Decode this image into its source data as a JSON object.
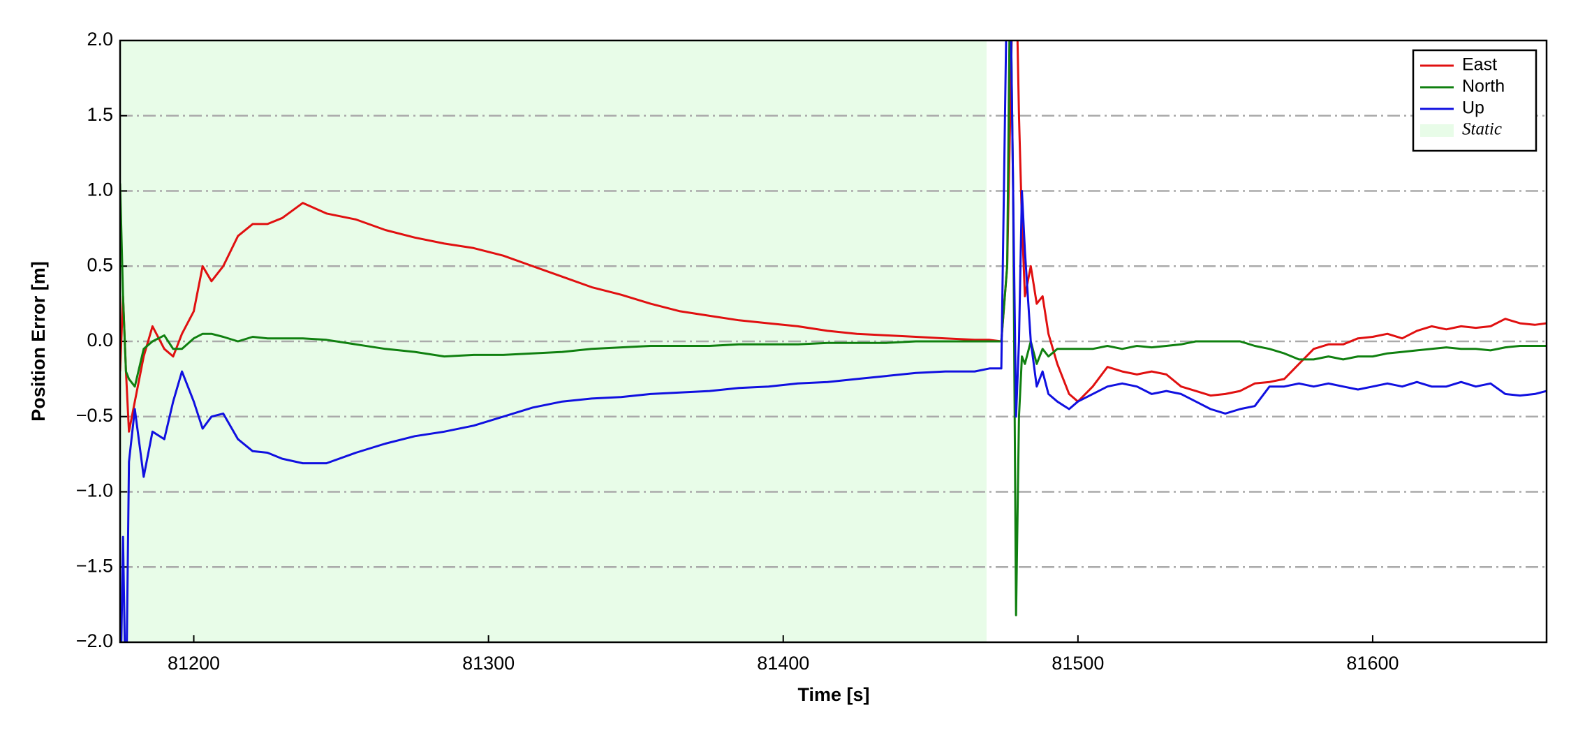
{
  "chart_data": {
    "type": "line",
    "xlabel": "Time [s]",
    "ylabel": "Position Error [m]",
    "x": [
      81175,
      81176,
      81177,
      81178,
      81180,
      81183,
      81186,
      81190,
      81193,
      81196,
      81200,
      81203,
      81206,
      81210,
      81215,
      81220,
      81225,
      81230,
      81237,
      81245,
      81255,
      81265,
      81275,
      81285,
      81295,
      81305,
      81315,
      81325,
      81335,
      81345,
      81355,
      81365,
      81375,
      81385,
      81395,
      81405,
      81415,
      81425,
      81435,
      81445,
      81455,
      81465,
      81470,
      81474,
      81476,
      81477,
      81478,
      81479,
      81480,
      81481,
      81482,
      81484,
      81486,
      81488,
      81490,
      81493,
      81497,
      81500,
      81505,
      81510,
      81515,
      81520,
      81525,
      81530,
      81535,
      81540,
      81545,
      81550,
      81555,
      81560,
      81565,
      81570,
      81575,
      81580,
      81585,
      81590,
      81595,
      81600,
      81605,
      81610,
      81615,
      81620,
      81625,
      81630,
      81635,
      81640,
      81645,
      81650,
      81655,
      81659
    ],
    "series": [
      {
        "name": "East",
        "color": "#e01010",
        "values": [
          -0.2,
          0.3,
          -0.2,
          -0.6,
          -0.4,
          -0.1,
          0.1,
          -0.05,
          -0.1,
          0.05,
          0.2,
          0.5,
          0.4,
          0.5,
          0.7,
          0.78,
          0.78,
          0.82,
          0.92,
          0.85,
          0.81,
          0.74,
          0.69,
          0.65,
          0.62,
          0.57,
          0.5,
          0.43,
          0.36,
          0.31,
          0.25,
          0.2,
          0.17,
          0.14,
          0.12,
          0.1,
          0.07,
          0.05,
          0.04,
          0.03,
          0.02,
          0.01,
          0.01,
          0.0,
          0.5,
          1.5,
          2.5,
          2.5,
          1.5,
          0.8,
          0.3,
          0.5,
          0.25,
          0.3,
          0.05,
          -0.15,
          -0.35,
          -0.4,
          -0.3,
          -0.17,
          -0.2,
          -0.22,
          -0.2,
          -0.22,
          -0.3,
          -0.33,
          -0.36,
          -0.35,
          -0.33,
          -0.28,
          -0.27,
          -0.25,
          -0.15,
          -0.05,
          -0.02,
          -0.02,
          0.02,
          0.03,
          0.05,
          0.02,
          0.07,
          0.1,
          0.08,
          0.1,
          0.09,
          0.1,
          0.15,
          0.12,
          0.11,
          0.12
        ]
      },
      {
        "name": "North",
        "color": "#108010",
        "values": [
          1.05,
          0.3,
          -0.2,
          -0.25,
          -0.3,
          -0.05,
          0.0,
          0.04,
          -0.05,
          -0.05,
          0.02,
          0.05,
          0.05,
          0.03,
          0.0,
          0.03,
          0.02,
          0.02,
          0.02,
          0.01,
          -0.02,
          -0.05,
          -0.07,
          -0.1,
          -0.09,
          -0.09,
          -0.08,
          -0.07,
          -0.05,
          -0.04,
          -0.03,
          -0.03,
          -0.03,
          -0.02,
          -0.02,
          -0.02,
          -0.01,
          -0.01,
          -0.01,
          0.0,
          0.0,
          0.0,
          0.0,
          0.0,
          0.5,
          2.5,
          1.0,
          -1.82,
          -0.5,
          -0.1,
          -0.15,
          0.0,
          -0.15,
          -0.05,
          -0.1,
          -0.05,
          -0.05,
          -0.05,
          -0.05,
          -0.03,
          -0.05,
          -0.03,
          -0.04,
          -0.03,
          -0.02,
          0.0,
          0.0,
          0.0,
          0.0,
          -0.03,
          -0.05,
          -0.08,
          -0.12,
          -0.12,
          -0.1,
          -0.12,
          -0.1,
          -0.1,
          -0.08,
          -0.07,
          -0.06,
          -0.05,
          -0.04,
          -0.05,
          -0.05,
          -0.06,
          -0.04,
          -0.03,
          -0.03,
          -0.03
        ]
      },
      {
        "name": "Up",
        "color": "#1010e0",
        "values": [
          -2.5,
          -1.3,
          -2.5,
          -0.8,
          -0.45,
          -0.9,
          -0.6,
          -0.65,
          -0.4,
          -0.2,
          -0.4,
          -0.58,
          -0.5,
          -0.48,
          -0.65,
          -0.73,
          -0.74,
          -0.78,
          -0.81,
          -0.81,
          -0.74,
          -0.68,
          -0.63,
          -0.6,
          -0.56,
          -0.5,
          -0.44,
          -0.4,
          -0.38,
          -0.37,
          -0.35,
          -0.34,
          -0.33,
          -0.31,
          -0.3,
          -0.28,
          -0.27,
          -0.25,
          -0.23,
          -0.21,
          -0.2,
          -0.2,
          -0.18,
          -0.18,
          2.5,
          2.5,
          1.0,
          -0.5,
          0.0,
          1.0,
          0.6,
          0.0,
          -0.3,
          -0.2,
          -0.35,
          -0.4,
          -0.45,
          -0.4,
          -0.35,
          -0.3,
          -0.28,
          -0.3,
          -0.35,
          -0.33,
          -0.35,
          -0.4,
          -0.45,
          -0.48,
          -0.45,
          -0.43,
          -0.3,
          -0.3,
          -0.28,
          -0.3,
          -0.28,
          -0.3,
          -0.32,
          -0.3,
          -0.28,
          -0.3,
          -0.27,
          -0.3,
          -0.3,
          -0.27,
          -0.3,
          -0.28,
          -0.35,
          -0.36,
          -0.35,
          -0.33
        ]
      }
    ],
    "shaded_region": {
      "name": "Static",
      "color": "#e8fce8",
      "xmin": 81175,
      "xmax": 81469
    },
    "xlim": [
      81175,
      81659
    ],
    "ylim": [
      -2,
      2
    ],
    "xticks": [
      81200,
      81300,
      81400,
      81500,
      81600
    ],
    "yticks": [
      {
        "value": -2,
        "label": "−2.0"
      },
      {
        "value": -1.5,
        "label": "−1.5"
      },
      {
        "value": -1,
        "label": "−1.0"
      },
      {
        "value": -0.5,
        "label": "−0.5"
      },
      {
        "value": 0,
        "label": "0.0"
      },
      0.5,
      {
        "value": 1,
        "label": "1.0"
      },
      1.5,
      {
        "value": 2,
        "label": "2.0"
      }
    ],
    "grid": true,
    "legend": "upper right"
  }
}
